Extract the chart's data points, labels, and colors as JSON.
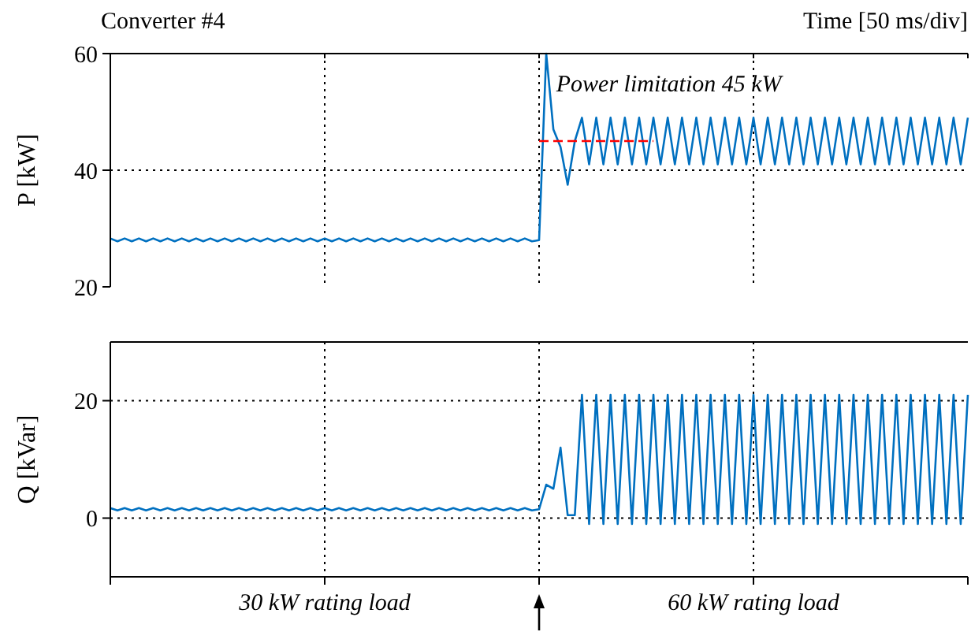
{
  "chart_data": [
    {
      "type": "line",
      "title": "Converter #4",
      "ylabel": "P [kW]",
      "categories": [
        null,
        null,
        null,
        null,
        null,
        null,
        null,
        null,
        null,
        null,
        null,
        null,
        null,
        null,
        null,
        null,
        null,
        null,
        null,
        null,
        null,
        null,
        null,
        null,
        null,
        null,
        null,
        null,
        null,
        null,
        null,
        null,
        null,
        null,
        null,
        null,
        null,
        null,
        null,
        null,
        null,
        null,
        null,
        null,
        null,
        null,
        null,
        null,
        null,
        null,
        null,
        null,
        null,
        null,
        null,
        null,
        null,
        null,
        null,
        null,
        null,
        null,
        null,
        null,
        null,
        null,
        null,
        null,
        null,
        null,
        null,
        null,
        null,
        null,
        null,
        null,
        null,
        null,
        null,
        null,
        null,
        null,
        null,
        null,
        null,
        null,
        null,
        null,
        null,
        null,
        null,
        null,
        null,
        null,
        null,
        null,
        null,
        null,
        null,
        null,
        null,
        null,
        null,
        null,
        null,
        null,
        null,
        null,
        null,
        null,
        null,
        null,
        null,
        null,
        null,
        null,
        null,
        null,
        null,
        null,
        null
      ],
      "ylim": [
        20,
        60
      ],
      "yticks": [
        20,
        40,
        60
      ],
      "grid": true,
      "annotations": [
        "Time [50 ms/div]",
        "Power limitation 45 kW"
      ],
      "series": [
        {
          "color": "#0070c0",
          "values": [
            28.3,
            27.8,
            28.3,
            27.8,
            28.3,
            27.8,
            28.3,
            27.8,
            28.3,
            27.8,
            28.3,
            27.8,
            28.3,
            27.8,
            28.3,
            27.8,
            28.3,
            27.8,
            28.3,
            27.8,
            28.3,
            27.8,
            28.3,
            27.8,
            28.3,
            27.8,
            28.3,
            27.8,
            28.3,
            27.8,
            28.3,
            27.8,
            28.3,
            27.8,
            28.3,
            27.8,
            28.3,
            27.8,
            28.3,
            27.8,
            28.3,
            27.8,
            28.3,
            27.8,
            28.3,
            27.8,
            28.3,
            27.8,
            28.3,
            27.8,
            28.3,
            27.8,
            28.3,
            27.8,
            28.3,
            27.8,
            28.3,
            27.8,
            28.3,
            27.8,
            28,
            60,
            47,
            44,
            37.5,
            45,
            49,
            41,
            49,
            41,
            49,
            41,
            49,
            41,
            49,
            41,
            49,
            41,
            49,
            41,
            49,
            41,
            49,
            41,
            49,
            41,
            49,
            41,
            49,
            41,
            49,
            41,
            49,
            41,
            49,
            41,
            49,
            41,
            49,
            41,
            49,
            41,
            49,
            41,
            49,
            41,
            49,
            41,
            49,
            41,
            49,
            41,
            49,
            41,
            49,
            41,
            49,
            41,
            49,
            41,
            49
          ]
        },
        {
          "color": "#ff0000",
          "line_style": "dashed",
          "values": [
            null,
            null,
            null,
            null,
            null,
            null,
            null,
            null,
            null,
            null,
            null,
            null,
            null,
            null,
            null,
            null,
            null,
            null,
            null,
            null,
            null,
            null,
            null,
            null,
            null,
            null,
            null,
            null,
            null,
            null,
            null,
            null,
            null,
            null,
            null,
            null,
            null,
            null,
            null,
            null,
            null,
            null,
            null,
            null,
            null,
            null,
            null,
            null,
            null,
            null,
            null,
            null,
            null,
            null,
            null,
            null,
            null,
            null,
            null,
            null,
            45,
            45,
            45,
            45,
            45,
            45,
            45,
            45,
            45,
            45,
            45,
            45,
            45,
            45,
            45,
            45,
            45,
            null,
            null,
            null,
            null,
            null,
            null,
            null,
            null,
            null,
            null,
            null,
            null,
            null,
            null,
            null,
            null,
            null,
            null,
            null,
            null,
            null,
            null,
            null,
            null,
            null,
            null,
            null,
            null,
            null,
            null,
            null,
            null,
            null,
            null,
            null,
            null,
            null,
            null,
            null,
            null,
            null,
            null,
            null,
            null
          ]
        }
      ]
    },
    {
      "type": "line",
      "ylabel": "Q [kVar]",
      "categories": [
        null,
        null,
        null,
        null,
        null,
        null,
        null,
        null,
        null,
        null,
        null,
        null,
        null,
        null,
        null,
        null,
        null,
        null,
        null,
        null,
        null,
        null,
        null,
        null,
        null,
        null,
        null,
        null,
        null,
        null,
        null,
        null,
        null,
        null,
        null,
        null,
        null,
        null,
        null,
        null,
        null,
        null,
        null,
        null,
        null,
        null,
        null,
        null,
        null,
        null,
        null,
        null,
        null,
        null,
        null,
        null,
        null,
        null,
        null,
        null,
        null,
        null,
        null,
        null,
        null,
        null,
        null,
        null,
        null,
        null,
        null,
        null,
        null,
        null,
        null,
        null,
        null,
        null,
        null,
        null,
        null,
        null,
        null,
        null,
        null,
        null,
        null,
        null,
        null,
        null,
        null,
        null,
        null,
        null,
        null,
        null,
        null,
        null,
        null,
        null,
        null,
        null,
        null,
        null,
        null,
        null,
        null,
        null,
        null,
        null,
        null,
        null,
        null,
        null,
        null,
        null,
        null,
        null,
        null,
        null,
        null
      ],
      "ylim": [
        -10,
        30
      ],
      "yticks": [
        0,
        20
      ],
      "grid": true,
      "annotations": [
        "30 kW rating load",
        "60 kW rating load"
      ],
      "series": [
        {
          "color": "#0070c0",
          "values": [
            1.7,
            1.3,
            1.7,
            1.3,
            1.7,
            1.3,
            1.7,
            1.3,
            1.7,
            1.3,
            1.7,
            1.3,
            1.7,
            1.3,
            1.7,
            1.3,
            1.7,
            1.3,
            1.7,
            1.3,
            1.7,
            1.3,
            1.7,
            1.3,
            1.7,
            1.3,
            1.7,
            1.3,
            1.7,
            1.3,
            1.7,
            1.3,
            1.7,
            1.3,
            1.7,
            1.3,
            1.7,
            1.3,
            1.7,
            1.3,
            1.7,
            1.3,
            1.7,
            1.3,
            1.7,
            1.3,
            1.7,
            1.3,
            1.7,
            1.3,
            1.7,
            1.3,
            1.7,
            1.3,
            1.7,
            1.3,
            1.7,
            1.3,
            1.7,
            1.3,
            1.5,
            5.7,
            5,
            12,
            0.5,
            0.5,
            21,
            -1,
            21,
            -1,
            21,
            -1,
            21,
            -1,
            21,
            -1,
            21,
            -1,
            21,
            -1,
            21,
            -1,
            21,
            -1,
            21,
            -1,
            21,
            -1,
            21,
            -1,
            21,
            -1,
            21,
            -1,
            21,
            -1,
            21,
            -1,
            21,
            -1,
            21,
            -1,
            21,
            -1,
            21,
            -1,
            21,
            -1,
            21,
            -1,
            21,
            -1,
            21,
            -1,
            21,
            -1,
            21,
            -1,
            21,
            -1,
            21
          ]
        }
      ]
    }
  ]
}
